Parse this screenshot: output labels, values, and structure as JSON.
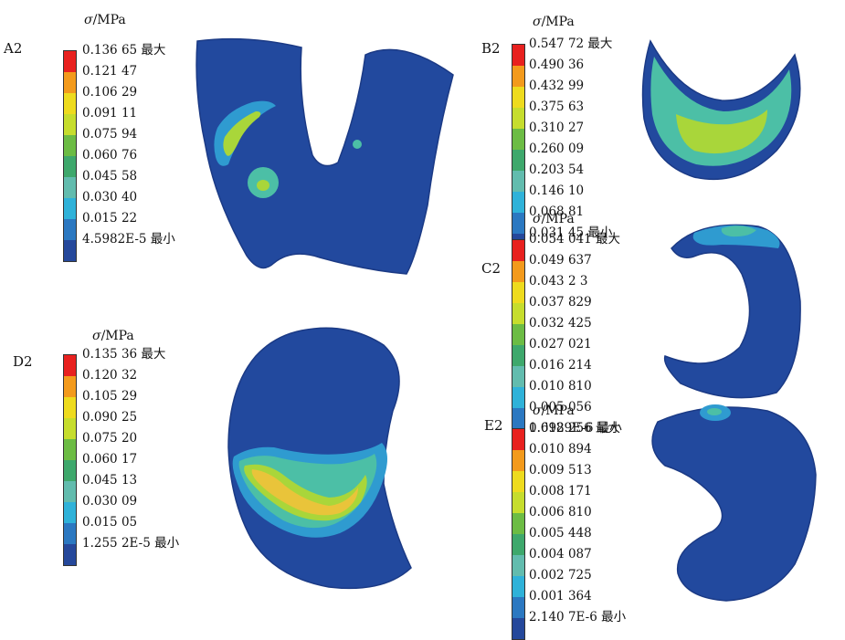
{
  "palette": [
    "#e8211f",
    "#f39a1c",
    "#eedb1e",
    "#c6dd2d",
    "#6cbc44",
    "#3ea86c",
    "#62bcae",
    "#2fb2d9",
    "#2b78c1",
    "#25489b"
  ],
  "model_colors": {
    "base": "#22499e",
    "edge": "#1b3a85",
    "low": "#2f9bd0",
    "mid": "#4cbfa6",
    "high": "#a9d63a",
    "peak": "#e9c43a"
  },
  "panels": [
    {
      "id": "A2",
      "label": "A2",
      "unit_symbol": "σ",
      "unit_text": "/MPa",
      "ticks": [
        "0.136 65 最大",
        "0.121 47",
        "0.106 29",
        "0.091 11",
        "0.075 94",
        "0.060 76",
        "0.045 58",
        "0.030 40",
        "0.015 22",
        "4.5982E-5 最小"
      ]
    },
    {
      "id": "B2",
      "label": "B2",
      "unit_symbol": "σ",
      "unit_text": "/MPa",
      "ticks": [
        "0.547 72 最大",
        "0.490 36",
        "0.432 99",
        "0.375 63",
        "0.310 27",
        "0.260 09",
        "0.203 54",
        "0.146 10",
        "0.068 81",
        "0.031 45 最小"
      ]
    },
    {
      "id": "C2",
      "label": "C2",
      "unit_symbol": "σ",
      "unit_text": "/MPa",
      "ticks": [
        "0.054 041 最大",
        "0.049 637",
        "0.043 2 3",
        "0.037 829",
        "0.032 425",
        "0.027 021",
        "0.016 214",
        "0.010 810",
        "0.005 056",
        "1.6989E-6 最小"
      ]
    },
    {
      "id": "D2",
      "label": "D2",
      "unit_symbol": "σ",
      "unit_text": "/MPa",
      "ticks": [
        "0.135 36 最大",
        "0.120 32",
        "0.105 29",
        "0.090 25",
        "0.075 20",
        "0.060 17",
        "0.045 13",
        "0.030 09",
        "0.015 05",
        "1.255 2E-5 最小"
      ]
    },
    {
      "id": "E2",
      "label": "E2",
      "unit_symbol": "σ",
      "unit_text": "/MPa",
      "ticks": [
        "0.012 256 最大",
        "0.010 894",
        "0.009 513",
        "0.008 171",
        "0.006 810",
        "0.005 448",
        "0.004 087",
        "0.002 725",
        "0.001 364",
        "2.140 7E-6 最小"
      ]
    }
  ]
}
